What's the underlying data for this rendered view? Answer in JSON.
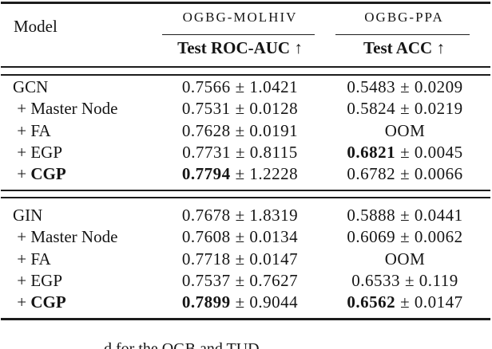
{
  "colors": {
    "background": "#ffffff",
    "text": "#151515",
    "rule": "#1c1c1c"
  },
  "table": {
    "header": {
      "model_label": "Model",
      "groups": [
        {
          "dataset": "OGBG-MOLHIV",
          "metric": "Test ROC-AUC ↑"
        },
        {
          "dataset": "OGBG-PPA",
          "metric": "Test ACC ↑"
        }
      ]
    },
    "rows": [
      {
        "block": 1,
        "model_prefix": "",
        "model_name": "GCN",
        "model_bold": false,
        "c1_mean": "0.7566",
        "c1_rest": "± 1.0421",
        "c1_bold": false,
        "c2_mean": "0.5483",
        "c2_rest": "± 0.0209",
        "c2_bold": false
      },
      {
        "block": 1,
        "model_prefix": " + ",
        "model_name": "Master Node",
        "model_bold": false,
        "c1_mean": "0.7531",
        "c1_rest": "± 0.0128",
        "c1_bold": false,
        "c2_mean": "0.5824",
        "c2_rest": "± 0.0219",
        "c2_bold": false
      },
      {
        "block": 1,
        "model_prefix": " + ",
        "model_name": "FA",
        "model_bold": false,
        "c1_mean": "0.7628",
        "c1_rest": "± 0.0191",
        "c1_bold": false,
        "c2_mean": "OOM",
        "c2_rest": "",
        "c2_bold": false
      },
      {
        "block": 1,
        "model_prefix": " + ",
        "model_name": "EGP",
        "model_bold": false,
        "c1_mean": "0.7731",
        "c1_rest": "± 0.8115",
        "c1_bold": false,
        "c2_mean": "0.6821",
        "c2_rest": "± 0.0045",
        "c2_bold": true
      },
      {
        "block": 1,
        "model_prefix": " + ",
        "model_name": "CGP",
        "model_bold": true,
        "c1_mean": "0.7794",
        "c1_rest": "± 1.2228",
        "c1_bold": true,
        "c2_mean": "0.6782",
        "c2_rest": "± 0.0066",
        "c2_bold": false
      },
      {
        "block": 2,
        "model_prefix": "",
        "model_name": "GIN",
        "model_bold": false,
        "c1_mean": "0.7678",
        "c1_rest": "± 1.8319",
        "c1_bold": false,
        "c2_mean": "0.5888",
        "c2_rest": "± 0.0441",
        "c2_bold": false
      },
      {
        "block": 2,
        "model_prefix": " + ",
        "model_name": "Master Node",
        "model_bold": false,
        "c1_mean": "0.7608",
        "c1_rest": "± 0.0134",
        "c1_bold": false,
        "c2_mean": "0.6069",
        "c2_rest": "± 0.0062",
        "c2_bold": false
      },
      {
        "block": 2,
        "model_prefix": " + ",
        "model_name": "FA",
        "model_bold": false,
        "c1_mean": "0.7718",
        "c1_rest": "± 0.0147",
        "c1_bold": false,
        "c2_mean": "OOM",
        "c2_rest": "",
        "c2_bold": false
      },
      {
        "block": 2,
        "model_prefix": " + ",
        "model_name": "EGP",
        "model_bold": false,
        "c1_mean": "0.7537",
        "c1_rest": "± 0.7627",
        "c1_bold": false,
        "c2_mean": "0.6533",
        "c2_rest": "± 0.119",
        "c2_bold": false
      },
      {
        "block": 2,
        "model_prefix": " + ",
        "model_name": "CGP",
        "model_bold": true,
        "c1_mean": "0.7899",
        "c1_rest": "± 0.9044",
        "c1_bold": true,
        "c2_mean": "0.6562",
        "c2_rest": "± 0.0147",
        "c2_bold": true
      }
    ]
  },
  "caption_fragment": "d for the OGB and TUD"
}
